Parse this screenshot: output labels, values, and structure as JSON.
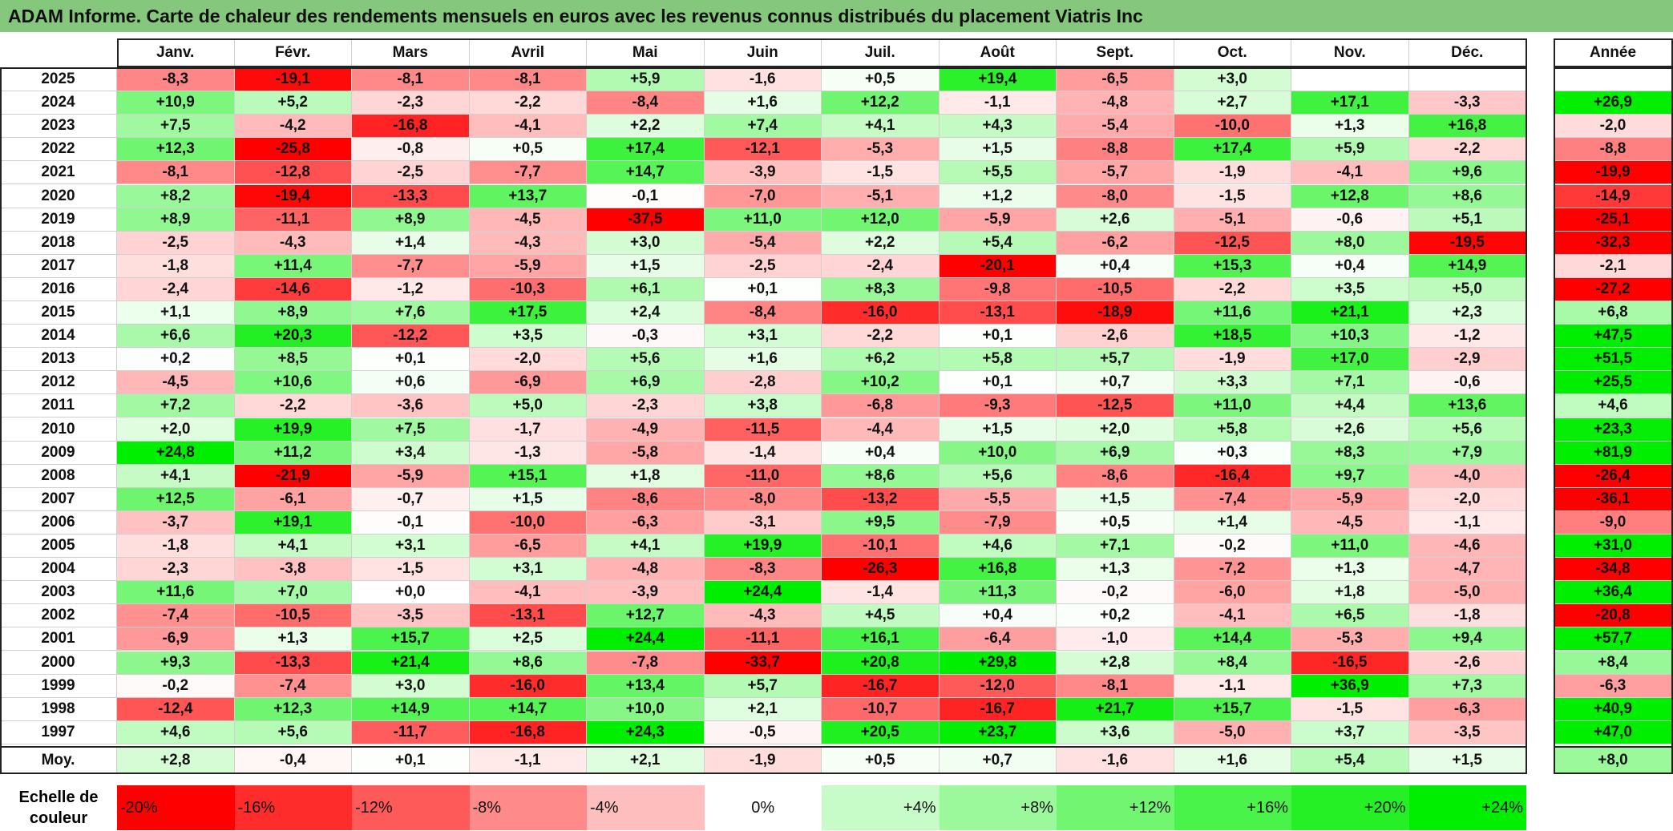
{
  "title": "ADAM Informe. Carte de chaleur des rendements mensuels en euros avec les revenus connus distribués du placement Viatris Inc",
  "chart_data": {
    "type": "heatmap",
    "months": [
      "Janv.",
      "Févr.",
      "Mars",
      "Avril",
      "Mai",
      "Juin",
      "Juil.",
      "Août",
      "Sept.",
      "Oct.",
      "Nov.",
      "Déc."
    ],
    "annual_label": "Année",
    "average_label": "Moy.",
    "rows": [
      {
        "year": "2025",
        "values": [
          -8.3,
          -19.1,
          -8.1,
          -8.1,
          5.9,
          -1.6,
          0.5,
          19.4,
          -6.5,
          3.0,
          null,
          null
        ],
        "annual": null
      },
      {
        "year": "2024",
        "values": [
          10.9,
          5.2,
          -2.3,
          -2.2,
          -8.4,
          1.6,
          12.2,
          -1.1,
          -4.8,
          2.7,
          17.1,
          -3.3
        ],
        "annual": 26.9
      },
      {
        "year": "2023",
        "values": [
          7.5,
          -4.2,
          -16.8,
          -4.1,
          2.2,
          7.4,
          4.1,
          4.3,
          -5.4,
          -10.0,
          1.3,
          16.8
        ],
        "annual": -2.0
      },
      {
        "year": "2022",
        "values": [
          12.3,
          -25.8,
          -0.8,
          0.5,
          17.4,
          -12.1,
          -5.3,
          1.5,
          -8.8,
          17.4,
          5.9,
          -2.2
        ],
        "annual": -8.8
      },
      {
        "year": "2021",
        "values": [
          -8.1,
          -12.8,
          -2.5,
          -7.7,
          14.7,
          -3.9,
          -1.5,
          5.5,
          -5.7,
          -1.9,
          -4.1,
          9.6
        ],
        "annual": -19.9
      },
      {
        "year": "2020",
        "values": [
          8.2,
          -19.4,
          -13.3,
          13.7,
          -0.1,
          -7.0,
          -5.1,
          1.2,
          -8.0,
          -1.5,
          12.8,
          8.6
        ],
        "annual": -14.9
      },
      {
        "year": "2019",
        "values": [
          8.9,
          -11.1,
          8.9,
          -4.5,
          -37.5,
          11.0,
          12.0,
          -5.9,
          2.6,
          -5.1,
          -0.6,
          5.1
        ],
        "annual": -25.1
      },
      {
        "year": "2018",
        "values": [
          -2.5,
          -4.3,
          1.4,
          -4.3,
          3.0,
          -5.4,
          2.2,
          5.4,
          -6.2,
          -12.5,
          8.0,
          -19.5
        ],
        "annual": -32.3
      },
      {
        "year": "2017",
        "values": [
          -1.8,
          11.4,
          -7.7,
          -5.9,
          1.5,
          -2.5,
          -2.4,
          -20.1,
          0.4,
          15.3,
          0.4,
          14.9
        ],
        "annual": -2.1
      },
      {
        "year": "2016",
        "values": [
          -2.4,
          -14.6,
          -1.2,
          -10.3,
          6.1,
          0.1,
          8.3,
          -9.8,
          -10.5,
          -2.2,
          3.5,
          5.0
        ],
        "annual": -27.2
      },
      {
        "year": "2015",
        "values": [
          1.1,
          8.9,
          7.6,
          17.5,
          2.4,
          -8.4,
          -16.0,
          -13.1,
          -18.9,
          11.6,
          21.1,
          2.3
        ],
        "annual": 6.8
      },
      {
        "year": "2014",
        "values": [
          6.6,
          20.3,
          -12.2,
          3.5,
          -0.3,
          3.1,
          -2.2,
          0.1,
          -2.6,
          18.5,
          10.3,
          -1.2
        ],
        "annual": 47.5
      },
      {
        "year": "2013",
        "values": [
          0.2,
          8.5,
          0.1,
          -2.0,
          5.6,
          1.6,
          6.2,
          5.8,
          5.7,
          -1.9,
          17.0,
          -2.9
        ],
        "annual": 51.5
      },
      {
        "year": "2012",
        "values": [
          -4.5,
          10.6,
          0.6,
          -6.9,
          6.9,
          -2.8,
          10.2,
          0.1,
          0.7,
          3.3,
          7.1,
          -0.6
        ],
        "annual": 25.5
      },
      {
        "year": "2011",
        "values": [
          7.2,
          -2.2,
          -3.6,
          5.0,
          -2.3,
          3.8,
          -6.8,
          -9.3,
          -12.5,
          11.0,
          4.4,
          13.6
        ],
        "annual": 4.6
      },
      {
        "year": "2010",
        "values": [
          2.0,
          19.9,
          7.5,
          -1.7,
          -4.9,
          -11.5,
          -4.4,
          1.5,
          2.0,
          5.8,
          2.6,
          5.6
        ],
        "annual": 23.3
      },
      {
        "year": "2009",
        "values": [
          24.8,
          11.2,
          3.4,
          -1.3,
          -5.8,
          -1.4,
          0.4,
          10.0,
          6.9,
          0.3,
          8.3,
          7.9
        ],
        "annual": 81.9
      },
      {
        "year": "2008",
        "values": [
          4.1,
          -21.9,
          -5.9,
          15.1,
          1.8,
          -11.0,
          8.6,
          5.6,
          -8.6,
          -16.4,
          9.7,
          -4.0
        ],
        "annual": -26.4
      },
      {
        "year": "2007",
        "values": [
          12.5,
          -6.1,
          -0.7,
          1.5,
          -8.6,
          -8.0,
          -13.2,
          -5.5,
          1.5,
          -7.4,
          -5.9,
          -2.0
        ],
        "annual": -36.1
      },
      {
        "year": "2006",
        "values": [
          -3.7,
          19.1,
          -0.1,
          -10.0,
          -6.3,
          -3.1,
          9.5,
          -7.9,
          0.5,
          1.4,
          -4.5,
          -1.1
        ],
        "annual": -9.0
      },
      {
        "year": "2005",
        "values": [
          -1.8,
          4.1,
          3.1,
          -6.5,
          4.1,
          19.9,
          -10.1,
          4.6,
          7.1,
          -0.2,
          11.0,
          -4.6
        ],
        "annual": 31.0
      },
      {
        "year": "2004",
        "values": [
          -2.3,
          -3.8,
          -1.5,
          3.1,
          -4.8,
          -8.3,
          -26.3,
          16.8,
          1.3,
          -7.2,
          1.3,
          -4.7
        ],
        "annual": -34.8
      },
      {
        "year": "2003",
        "values": [
          11.6,
          7.0,
          0.0,
          -4.1,
          -3.9,
          24.4,
          -1.4,
          11.3,
          -0.2,
          -6.0,
          1.8,
          -5.0
        ],
        "annual": 36.4
      },
      {
        "year": "2002",
        "values": [
          -7.4,
          -10.5,
          -3.5,
          -13.1,
          12.7,
          -4.3,
          4.5,
          0.4,
          0.2,
          -4.1,
          6.5,
          -1.8
        ],
        "annual": -20.8
      },
      {
        "year": "2001",
        "values": [
          -6.9,
          1.3,
          15.7,
          2.5,
          24.4,
          -11.1,
          16.1,
          -6.4,
          -1.0,
          14.4,
          -5.3,
          9.4
        ],
        "annual": 57.7
      },
      {
        "year": "2000",
        "values": [
          9.3,
          -13.3,
          21.4,
          8.6,
          -7.8,
          -33.7,
          20.8,
          29.8,
          2.8,
          8.4,
          -16.5,
          -2.6
        ],
        "annual": 8.4
      },
      {
        "year": "1999",
        "values": [
          -0.2,
          -7.4,
          3.0,
          -16.0,
          13.4,
          5.7,
          -16.7,
          -12.0,
          -8.1,
          -1.1,
          36.9,
          7.3
        ],
        "annual": -6.3
      },
      {
        "year": "1998",
        "values": [
          -12.4,
          12.3,
          14.9,
          14.7,
          10.0,
          2.1,
          -10.7,
          -16.7,
          21.7,
          15.7,
          -1.5,
          -6.3
        ],
        "annual": 40.9
      },
      {
        "year": "1997",
        "values": [
          4.6,
          5.6,
          -11.7,
          -16.8,
          24.3,
          -0.5,
          20.5,
          23.7,
          3.6,
          -5.0,
          3.7,
          -3.5
        ],
        "annual": 47.0
      }
    ],
    "average": {
      "values": [
        2.8,
        -0.4,
        0.1,
        -1.1,
        2.1,
        -1.9,
        0.5,
        0.7,
        -1.6,
        1.6,
        5.4,
        1.5
      ],
      "annual": 8.0
    },
    "scale_label": "Echelle de couleur",
    "scale": [
      {
        "label": "-20%",
        "value": -20
      },
      {
        "label": "-16%",
        "value": -16
      },
      {
        "label": "-12%",
        "value": -12
      },
      {
        "label": "-8%",
        "value": -8
      },
      {
        "label": "-4%",
        "value": -4
      },
      {
        "label": "0%",
        "value": 0
      },
      {
        "label": "+4%",
        "value": 4
      },
      {
        "label": "+8%",
        "value": 8
      },
      {
        "label": "+12%",
        "value": 12
      },
      {
        "label": "+16%",
        "value": 16
      },
      {
        "label": "+20%",
        "value": 20
      },
      {
        "label": "+24%",
        "value": 24
      }
    ],
    "colors": {
      "negative": "#ff0000",
      "neutral": "#ffffff",
      "positive": "#00ee00"
    }
  }
}
